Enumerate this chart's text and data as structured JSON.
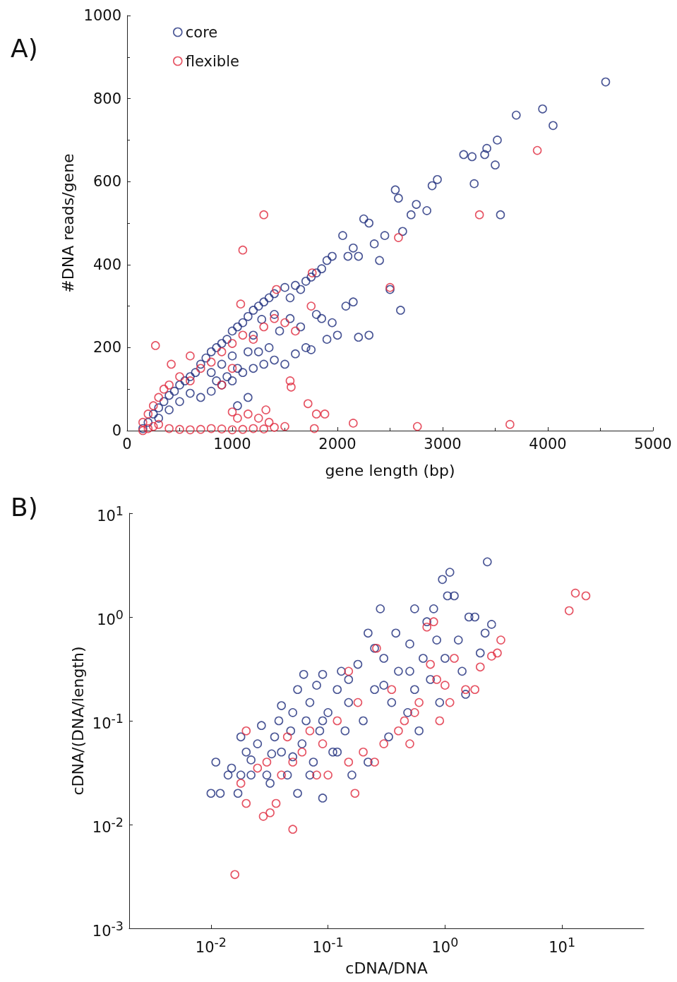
{
  "chart_data": [
    {
      "type": "scatter",
      "title": "A)",
      "xlabel": "gene length (bp)",
      "ylabel": "#DNA reads/gene",
      "xlim": [
        0,
        5000
      ],
      "xticks": [
        0,
        1000,
        2000,
        3000,
        4000,
        5000
      ],
      "ylim": [
        0,
        1000
      ],
      "yticks": [
        0,
        200,
        400,
        600,
        800,
        1000
      ],
      "grid": false,
      "legend": "top left",
      "marker": "circle",
      "series": [
        {
          "name": "core",
          "color": "#1b2a7a",
          "x": [
            150,
            200,
            250,
            300,
            350,
            400,
            450,
            500,
            550,
            600,
            650,
            700,
            750,
            800,
            850,
            900,
            950,
            1000,
            1050,
            1100,
            1150,
            1200,
            1250,
            1300,
            1350,
            1400,
            1500,
            1550,
            1600,
            1650,
            1700,
            1750,
            1800,
            1850,
            1900,
            1950,
            2050,
            2100,
            2150,
            2200,
            2250,
            2300,
            2350,
            2400,
            2450,
            2550,
            2580,
            2620,
            2700,
            2750,
            2850,
            2900,
            2950,
            3200,
            3280,
            3300,
            3400,
            3420,
            3500,
            3520,
            3550,
            3700,
            3950,
            4050,
            4550,
            700,
            800,
            900,
            1000,
            1100,
            1200,
            1300,
            1400,
            1500,
            1600,
            1700,
            1750,
            1900,
            2000,
            2200,
            1800,
            1850,
            1950,
            2080,
            2150,
            2600,
            1450,
            1350,
            1250,
            1150,
            1050,
            950,
            850,
            600,
            500,
            400,
            300,
            1550,
            1650,
            1000,
            1200,
            900,
            800,
            1280,
            1400,
            1150,
            1050,
            2300,
            2500
          ],
          "values": [
            5,
            20,
            40,
            55,
            70,
            85,
            95,
            110,
            120,
            130,
            140,
            160,
            175,
            190,
            200,
            210,
            220,
            240,
            250,
            260,
            275,
            290,
            300,
            310,
            320,
            330,
            345,
            320,
            350,
            340,
            360,
            370,
            380,
            390,
            410,
            420,
            470,
            420,
            440,
            420,
            510,
            500,
            450,
            410,
            470,
            580,
            560,
            480,
            520,
            545,
            530,
            590,
            605,
            665,
            660,
            595,
            665,
            680,
            640,
            700,
            520,
            760,
            775,
            735,
            840,
            80,
            95,
            110,
            120,
            140,
            150,
            160,
            170,
            160,
            185,
            200,
            195,
            220,
            230,
            225,
            280,
            270,
            260,
            300,
            310,
            290,
            240,
            200,
            190,
            190,
            150,
            130,
            120,
            90,
            70,
            50,
            30,
            270,
            250,
            180,
            230,
            160,
            140,
            268,
            280,
            80,
            60,
            230,
            340
          ]
        },
        {
          "name": "flexible",
          "color": "#e0283c",
          "x": [
            150,
            200,
            250,
            300,
            400,
            500,
            600,
            700,
            800,
            900,
            1000,
            1100,
            1200,
            1300,
            1400,
            1500,
            1780,
            1000,
            1050,
            1150,
            1250,
            1320,
            1350,
            1720,
            1800,
            2150,
            2760,
            3640,
            1100,
            1300,
            3350,
            3900,
            270,
            420,
            600,
            1080,
            1420,
            1760,
            2500,
            2580,
            150,
            200,
            250,
            300,
            350,
            400,
            500,
            600,
            700,
            800,
            900,
            1000,
            1100,
            1200,
            1300,
            1400,
            1500,
            1600,
            1550,
            1560,
            1750,
            900,
            1000,
            1880
          ],
          "values": [
            0,
            5,
            10,
            15,
            5,
            3,
            2,
            3,
            5,
            4,
            2,
            3,
            5,
            4,
            8,
            10,
            5,
            45,
            30,
            40,
            30,
            50,
            20,
            65,
            40,
            18,
            10,
            15,
            435,
            520,
            520,
            675,
            205,
            160,
            180,
            305,
            340,
            380,
            345,
            465,
            20,
            40,
            60,
            80,
            100,
            110,
            130,
            120,
            150,
            165,
            190,
            210,
            230,
            220,
            250,
            270,
            260,
            240,
            120,
            105,
            300,
            110,
            150,
            40
          ]
        }
      ]
    },
    {
      "type": "scatter",
      "title": "B)",
      "xlabel": "cDNA/DNA",
      "ylabel": "cDNA/(DNA/length)",
      "log": "xy",
      "xlim": [
        0.002,
        50
      ],
      "ylim": [
        0.001,
        10
      ],
      "grid": false,
      "marker": "circle",
      "xticks": [
        {
          "value": 0.01,
          "label": "10$^{-2}$"
        },
        {
          "value": 0.1,
          "label": "10$^{-1}$"
        },
        {
          "value": 1,
          "label": "10$^{0}$"
        },
        {
          "value": 10,
          "label": "10$^{1}$"
        }
      ],
      "yticks": [
        {
          "value": 0.001,
          "label": "10$^{-3}$"
        },
        {
          "value": 0.01,
          "label": "10$^{-2}$"
        },
        {
          "value": 0.1,
          "label": "10$^{-1}$"
        },
        {
          "value": 1,
          "label": "10$^{0}$"
        },
        {
          "value": 10,
          "label": "10$^{1}$"
        }
      ],
      "series": [
        {
          "color": "#1b2a7a",
          "x": [
            0.01,
            0.011,
            0.012,
            0.014,
            0.015,
            0.017,
            0.018,
            0.02,
            0.022,
            0.025,
            0.027,
            0.033,
            0.032,
            0.035,
            0.038,
            0.04,
            0.04,
            0.045,
            0.048,
            0.05,
            0.055,
            0.055,
            0.06,
            0.062,
            0.065,
            0.07,
            0.075,
            0.08,
            0.085,
            0.09,
            0.09,
            0.1,
            0.11,
            0.12,
            0.13,
            0.14,
            0.15,
            0.16,
            0.18,
            0.2,
            0.22,
            0.22,
            0.25,
            0.28,
            0.3,
            0.33,
            0.35,
            0.38,
            0.4,
            0.48,
            0.5,
            0.55,
            0.55,
            0.6,
            0.65,
            0.7,
            0.75,
            0.8,
            0.85,
            0.9,
            0.95,
            1.0,
            1.05,
            1.1,
            1.2,
            1.3,
            1.4,
            1.6,
            1.8,
            2.0,
            2.2,
            2.3,
            2.5,
            1.5,
            0.12,
            0.07,
            0.03,
            0.022,
            0.018,
            0.05,
            0.09,
            0.15,
            0.3,
            0.5,
            0.25
          ],
          "values": [
            0.02,
            0.04,
            0.02,
            0.03,
            0.035,
            0.02,
            0.07,
            0.05,
            0.03,
            0.06,
            0.09,
            0.048,
            0.025,
            0.07,
            0.1,
            0.05,
            0.14,
            0.03,
            0.08,
            0.12,
            0.02,
            0.2,
            0.06,
            0.28,
            0.1,
            0.15,
            0.04,
            0.22,
            0.08,
            0.018,
            0.28,
            0.12,
            0.05,
            0.2,
            0.3,
            0.08,
            0.15,
            0.03,
            0.35,
            0.1,
            0.7,
            0.04,
            0.2,
            1.2,
            0.4,
            0.07,
            0.15,
            0.7,
            0.3,
            0.12,
            0.55,
            1.2,
            0.2,
            0.08,
            0.4,
            0.9,
            0.25,
            1.2,
            0.6,
            0.15,
            2.3,
            0.4,
            1.6,
            2.7,
            1.6,
            0.6,
            0.3,
            1.0,
            1.0,
            0.45,
            0.7,
            3.4,
            0.85,
            0.18,
            0.05,
            0.03,
            0.03,
            0.042,
            0.03,
            0.045,
            0.1,
            0.25,
            0.22,
            0.3,
            0.5
          ]
        },
        {
          "color": "#e0283c",
          "x": [
            0.016,
            0.05,
            0.028,
            0.032,
            0.036,
            0.02,
            0.018,
            0.02,
            0.025,
            0.03,
            0.04,
            0.045,
            0.06,
            0.07,
            0.08,
            0.09,
            0.1,
            0.12,
            0.15,
            0.17,
            0.18,
            0.2,
            0.25,
            0.3,
            0.35,
            0.4,
            0.45,
            0.5,
            0.55,
            0.6,
            0.7,
            0.75,
            0.8,
            0.85,
            0.9,
            1.0,
            1.1,
            1.2,
            1.5,
            1.8,
            2.0,
            2.5,
            2.8,
            3.0,
            11.5,
            13,
            16,
            0.26,
            0.15,
            0.05
          ],
          "values": [
            0.0033,
            0.009,
            0.012,
            0.013,
            0.016,
            0.016,
            0.025,
            0.08,
            0.035,
            0.04,
            0.03,
            0.07,
            0.05,
            0.08,
            0.03,
            0.06,
            0.03,
            0.1,
            0.04,
            0.02,
            0.15,
            0.05,
            0.04,
            0.06,
            0.2,
            0.08,
            0.1,
            0.06,
            0.12,
            0.15,
            0.8,
            0.35,
            0.9,
            0.25,
            0.1,
            0.22,
            0.15,
            0.4,
            0.2,
            0.2,
            0.33,
            0.42,
            0.45,
            0.6,
            1.15,
            1.7,
            1.6,
            0.5,
            0.3,
            0.04
          ]
        }
      ]
    }
  ]
}
